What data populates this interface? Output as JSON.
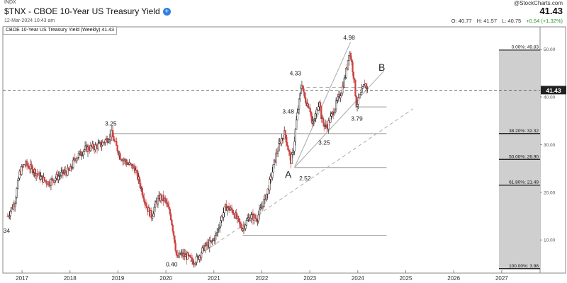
{
  "header": {
    "exchange": "INDX",
    "symbol_title": "$TNX - CBOE 10-Year US Treasury Yield",
    "add_icon": "plus-circle-icon",
    "datetime": "12-Mar-2024 10:43 am",
    "brand": "@StockCharts.com",
    "last_price": "41.43",
    "ohlc": {
      "o": "O: 40.77",
      "h": "H: 41.57",
      "l": "L: 40.75",
      "change": "+0.54 (+1.32%)"
    }
  },
  "legend": "CBOE 10-Year US Treasury Yield (Weekly) 41.43",
  "colors": {
    "up": "#222222",
    "down": "#cc4444",
    "fib_fill": "#cfcfcf",
    "change_positive": "#2a9a2a"
  },
  "chart_data": {
    "type": "candlestick",
    "title": "$TNX - CBOE 10-Year US Treasury Yield",
    "x_ticks": [
      "2017",
      "2018",
      "2019",
      "2020",
      "2021",
      "2022",
      "2023",
      "2024",
      "2025",
      "2026",
      "2027"
    ],
    "x_range": [
      2016.6,
      2027.8
    ],
    "y_ticks": [
      10,
      20,
      30,
      40,
      50
    ],
    "y_range": [
      3.5,
      53.5
    ],
    "last_value": 41.43,
    "close_path": [
      [
        2016.7,
        15
      ],
      [
        2016.85,
        18
      ],
      [
        2016.95,
        24
      ],
      [
        2017.05,
        26
      ],
      [
        2017.2,
        25
      ],
      [
        2017.4,
        23
      ],
      [
        2017.55,
        22
      ],
      [
        2017.7,
        23
      ],
      [
        2017.85,
        24
      ],
      [
        2018.0,
        24.5
      ],
      [
        2018.1,
        27
      ],
      [
        2018.3,
        29
      ],
      [
        2018.5,
        29.5
      ],
      [
        2018.65,
        30
      ],
      [
        2018.8,
        31.5
      ],
      [
        2018.87,
        32.3
      ],
      [
        2018.95,
        30
      ],
      [
        2019.05,
        27.5
      ],
      [
        2019.2,
        26
      ],
      [
        2019.35,
        25
      ],
      [
        2019.45,
        22
      ],
      [
        2019.6,
        17
      ],
      [
        2019.7,
        15
      ],
      [
        2019.8,
        18
      ],
      [
        2019.9,
        19
      ],
      [
        2020.0,
        18
      ],
      [
        2020.1,
        15
      ],
      [
        2020.18,
        10
      ],
      [
        2020.23,
        6
      ],
      [
        2020.3,
        7
      ],
      [
        2020.45,
        6.5
      ],
      [
        2020.55,
        5.5
      ],
      [
        2020.65,
        6
      ],
      [
        2020.8,
        8.5
      ],
      [
        2020.95,
        9.5
      ],
      [
        2021.05,
        11
      ],
      [
        2021.15,
        14.5
      ],
      [
        2021.25,
        17
      ],
      [
        2021.4,
        16
      ],
      [
        2021.55,
        13
      ],
      [
        2021.6,
        12.5
      ],
      [
        2021.75,
        15
      ],
      [
        2021.9,
        14.5
      ],
      [
        2022.0,
        17
      ],
      [
        2022.1,
        19.5
      ],
      [
        2022.2,
        23.5
      ],
      [
        2022.3,
        28
      ],
      [
        2022.4,
        31
      ],
      [
        2022.48,
        32.5
      ],
      [
        2022.55,
        29
      ],
      [
        2022.6,
        26.5
      ],
      [
        2022.65,
        28
      ],
      [
        2022.72,
        35
      ],
      [
        2022.8,
        40.5
      ],
      [
        2022.83,
        43.3
      ],
      [
        2022.88,
        40
      ],
      [
        2022.95,
        38.5
      ],
      [
        2023.0,
        38
      ],
      [
        2023.05,
        34
      ],
      [
        2023.12,
        36
      ],
      [
        2023.2,
        39.5
      ],
      [
        2023.25,
        35
      ],
      [
        2023.35,
        33.5
      ],
      [
        2023.45,
        36
      ],
      [
        2023.55,
        38.5
      ],
      [
        2023.65,
        41
      ],
      [
        2023.72,
        43.5
      ],
      [
        2023.78,
        46.5
      ],
      [
        2023.82,
        49.8
      ],
      [
        2023.86,
        48
      ],
      [
        2023.92,
        44
      ],
      [
        2023.97,
        38.5
      ],
      [
        2024.03,
        39.5
      ],
      [
        2024.1,
        41.5
      ],
      [
        2024.15,
        43
      ],
      [
        2024.2,
        41.43
      ]
    ],
    "annotations": [
      {
        "text": "34",
        "x": 2016.68,
        "y": 11.5
      },
      {
        "text": "3.25",
        "x": 2018.85,
        "y": 34.0
      },
      {
        "text": "0.40",
        "x": 2020.12,
        "y": 4.5
      },
      {
        "text": "3.48",
        "x": 2022.55,
        "y": 36.5
      },
      {
        "text": "4.33",
        "x": 2022.7,
        "y": 44.5
      },
      {
        "text": "4.98",
        "x": 2023.82,
        "y": 52.0
      },
      {
        "text": "3.79",
        "x": 2023.98,
        "y": 35.0
      },
      {
        "text": "3.25",
        "x": 2023.3,
        "y": 30.0
      },
      {
        "text": "2.52",
        "x": 2022.9,
        "y": 22.5
      }
    ],
    "wave_labels": [
      {
        "text": "A",
        "x": 2022.55,
        "y": 23.0
      },
      {
        "text": "B",
        "x": 2024.5,
        "y": 45.5
      }
    ],
    "horizontal_levels": [
      {
        "y": 32.3,
        "x1": 2018.9,
        "x2": 2024.6
      },
      {
        "y": 37.9,
        "x1": 2023.95,
        "x2": 2024.6
      },
      {
        "y": 25.2,
        "x1": 2022.68,
        "x2": 2024.6
      },
      {
        "y": 11.0,
        "x1": 2021.6,
        "x2": 2024.6
      }
    ],
    "channel_lines": [
      {
        "x1": 2022.68,
        "y1": 25.2,
        "x2": 2023.85,
        "y2": 51.5,
        "style": "solid"
      },
      {
        "x1": 2022.68,
        "y1": 25.2,
        "x2": 2024.55,
        "y2": 45.5,
        "style": "solid"
      },
      {
        "x1": 2022.8,
        "y1": 42.0,
        "x2": 2024.2,
        "y2": 42.0,
        "style": "dashed"
      },
      {
        "x1": 2020.5,
        "y1": 5.5,
        "x2": 2025.15,
        "y2": 37.5,
        "style": "dashed"
      }
    ],
    "fibonacci": [
      {
        "label": "0.00%: 49.83",
        "level": 49.83
      },
      {
        "label": "38.20%: 32.32",
        "level": 32.32
      },
      {
        "label": "50.00%: 26.90",
        "level": 26.9
      },
      {
        "label": "61.80%: 21.49",
        "level": 21.49
      },
      {
        "label": "100.00%: 3.98",
        "level": 3.98
      }
    ]
  }
}
